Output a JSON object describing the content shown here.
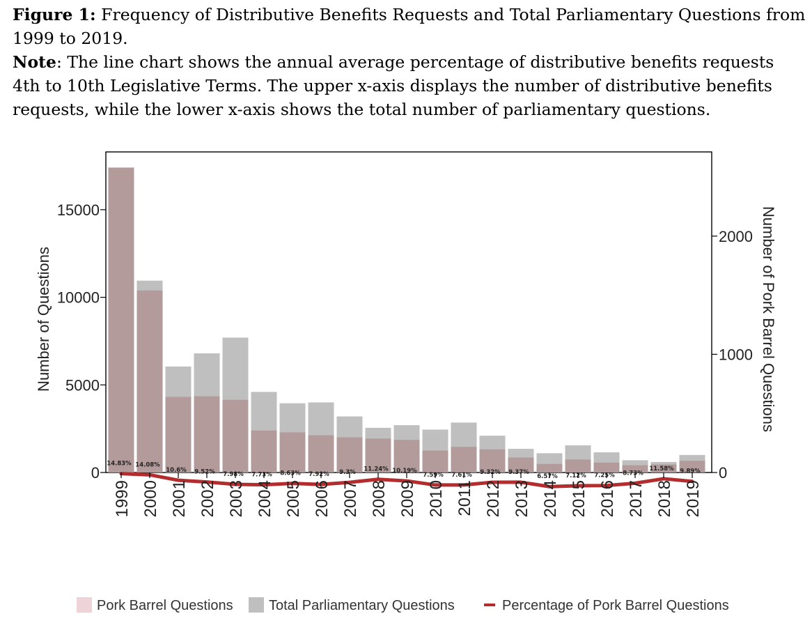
{
  "caption": {
    "figure_label": "Figure 1:",
    "figure_title": "Frequency of Distributive Benefits Requests and Total Parliamentary Questions from 1999 to 2019.",
    "note_label": "Note",
    "note_text": ": The line chart shows the annual average percentage of distributive benefits requests 4th to 10th Legislative Terms. The upper x-axis displays the number of distributive benefits requests, while the lower x-axis shows the total number of parliamentary questions."
  },
  "chart_data": {
    "type": "bar",
    "categories": [
      "1999",
      "2000",
      "2001",
      "2002",
      "2003",
      "2004",
      "2005",
      "2006",
      "2007",
      "2008",
      "2009",
      "2010",
      "2011",
      "2012",
      "2013",
      "2014",
      "2015",
      "2016",
      "2017",
      "2018",
      "2019"
    ],
    "series": [
      {
        "name": "Total Parliamentary Questions",
        "axis": "left",
        "values": [
          17400,
          10950,
          6050,
          6800,
          7700,
          4600,
          3950,
          4000,
          3200,
          2550,
          2700,
          2450,
          2850,
          2100,
          1350,
          1100,
          1550,
          1150,
          700,
          600,
          1000
        ]
      },
      {
        "name": "Pork Barrel Questions",
        "axis": "right",
        "values": [
          2580,
          1540,
          640,
          645,
          615,
          355,
          340,
          315,
          298,
          287,
          276,
          186,
          217,
          196,
          127,
          72,
          110,
          84,
          61,
          68,
          99
        ]
      },
      {
        "name": "Percentage of Pork Barrel Questions",
        "axis": "percent",
        "values": [
          14.83,
          14.08,
          10.6,
          9.52,
          7.98,
          7.73,
          8.63,
          7.92,
          9.3,
          11.24,
          10.19,
          7.59,
          7.61,
          9.32,
          9.37,
          6.57,
          7.12,
          7.25,
          8.73,
          11.58,
          9.89
        ]
      }
    ],
    "percent_labels": [
      "14.83%",
      "14.08%",
      "10.6%",
      "9.52%",
      "7.98%",
      "7.73%",
      "8.63%",
      "7.92%",
      "9.3%",
      "11.24%",
      "10.19%",
      "7.59%",
      "7.61%",
      "9.32%",
      "9.37%",
      "6.57%",
      "7.12%",
      "7.25%",
      "8.73%",
      "11.58%",
      "9.89%"
    ],
    "ylabel": "Number of Questions",
    "y2label": "Number of Pork Barrel Questions",
    "ylim": [
      0,
      17500
    ],
    "y2lim": [
      0,
      2600
    ],
    "yticks": [
      0,
      5000,
      10000,
      15000
    ],
    "ytick_labels": [
      "0",
      "5000",
      "10000",
      "15000"
    ],
    "y2ticks": [
      0,
      1000,
      2000
    ],
    "y2tick_labels": [
      "0",
      "1000",
      "2000"
    ],
    "grid": false,
    "legend_position": "bottom",
    "colors": {
      "total": "#bfbfbf",
      "pork": "#b39b9b",
      "pork_legend": "#eed4d8",
      "line": "#b32d2e"
    },
    "legend": [
      {
        "label": "Pork Barrel Questions",
        "swatch": "square",
        "color": "#eed4d8"
      },
      {
        "label": "Total Parliamentary Questions",
        "swatch": "square",
        "color": "#bfbfbf"
      },
      {
        "label": "Percentage of Pork Barrel Questions",
        "swatch": "line",
        "color": "#b32d2e"
      }
    ]
  }
}
